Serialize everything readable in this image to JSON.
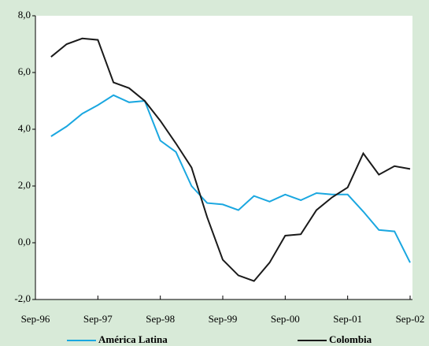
{
  "chart_data": {
    "type": "line",
    "categories": [
      "Sep-96",
      null,
      null,
      null,
      "Sep-97",
      null,
      null,
      null,
      "Sep-98",
      null,
      null,
      null,
      "Sep-99",
      null,
      null,
      null,
      "Sep-00",
      null,
      null,
      null,
      "Sep-01",
      null,
      null,
      null,
      "Sep-02"
    ],
    "series": [
      {
        "name": "América Latina",
        "color": "#1aa7e0",
        "values": [
          null,
          3.75,
          4.1,
          4.55,
          4.85,
          5.2,
          4.95,
          5.0,
          3.6,
          3.2,
          2.0,
          1.4,
          1.35,
          1.15,
          1.65,
          1.45,
          1.7,
          1.5,
          1.75,
          1.7,
          1.7,
          1.1,
          0.45,
          0.4,
          -0.7
        ]
      },
      {
        "name": "Colombia",
        "color": "#1a1a1a",
        "values": [
          null,
          6.55,
          7.0,
          7.2,
          7.15,
          5.65,
          5.45,
          5.0,
          4.3,
          3.5,
          2.65,
          0.9,
          -0.6,
          -1.15,
          -1.35,
          -0.7,
          0.25,
          0.3,
          1.15,
          1.6,
          1.95,
          3.15,
          2.4,
          2.7,
          2.6
        ]
      }
    ],
    "ylim": [
      -2,
      8
    ],
    "yticks": [
      {
        "value": -2,
        "label": "-2,0"
      },
      {
        "value": 0,
        "label": "0,0"
      },
      {
        "value": 2,
        "label": "2,0"
      },
      {
        "value": 4,
        "label": "4,0"
      },
      {
        "value": 6,
        "label": "6,0"
      },
      {
        "value": 8,
        "label": "8,0"
      }
    ],
    "legend": "bottom"
  }
}
